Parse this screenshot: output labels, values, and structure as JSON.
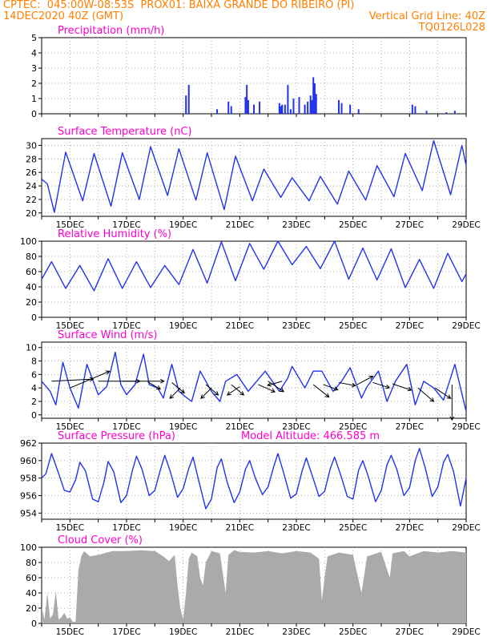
{
  "header": {
    "line1_left": "CPTEC:  045:00W-08:53S  PROX01: BAIXA GRANDE DO RIBEIRO (PI)",
    "line2_left": "14DEC2020 40Z (GMT)",
    "line2_right": "Vertical Grid Line: 40Z",
    "line3_right": "TQ0126L028",
    "color": "#ff8000"
  },
  "colors": {
    "title": "#ff00cc",
    "series": "#2233ee",
    "wind_arrow": "#000000",
    "cloud": "#aaaaaa",
    "grid": "#999999"
  },
  "x_axis": {
    "start_day": 14.0,
    "end_day": 29.0,
    "tick_labels": [
      "15DEC",
      "17DEC",
      "19DEC",
      "21DEC",
      "23DEC",
      "25DEC",
      "27DEC",
      "29DEC"
    ],
    "tick_days": [
      15,
      17,
      19,
      21,
      23,
      25,
      27,
      29
    ]
  },
  "chart_data": [
    {
      "type": "bar",
      "title": "Precipitation (mm/h)",
      "ylim": [
        0,
        5
      ],
      "yticks": [
        "0",
        "1",
        "2",
        "3",
        "4",
        "5"
      ],
      "points": [
        [
          19.1,
          1.2
        ],
        [
          19.2,
          1.9
        ],
        [
          20.2,
          0.3
        ],
        [
          20.6,
          0.8
        ],
        [
          20.7,
          0.5
        ],
        [
          21.2,
          1.1
        ],
        [
          21.25,
          1.9
        ],
        [
          21.3,
          0.9
        ],
        [
          21.5,
          0.6
        ],
        [
          21.7,
          0.8
        ],
        [
          22.4,
          0.7
        ],
        [
          22.45,
          0.5
        ],
        [
          22.5,
          0.6
        ],
        [
          22.6,
          0.6
        ],
        [
          22.7,
          1.9
        ],
        [
          22.8,
          0.3
        ],
        [
          22.9,
          1.0
        ],
        [
          23.1,
          1.1
        ],
        [
          23.3,
          0.6
        ],
        [
          23.4,
          0.8
        ],
        [
          23.5,
          1.2
        ],
        [
          23.55,
          0.9
        ],
        [
          23.6,
          2.4
        ],
        [
          23.65,
          2.0
        ],
        [
          23.7,
          1.3
        ],
        [
          24.5,
          0.9
        ],
        [
          24.6,
          0.7
        ],
        [
          24.9,
          0.6
        ],
        [
          25.2,
          0.3
        ],
        [
          27.1,
          0.6
        ],
        [
          27.2,
          0.5
        ],
        [
          27.6,
          0.2
        ],
        [
          28.3,
          0.1
        ],
        [
          28.6,
          0.2
        ]
      ]
    },
    {
      "type": "line",
      "title": "Surface Temperature (nC)",
      "ylim": [
        19.5,
        31
      ],
      "yticks": [
        "20",
        "22",
        "24",
        "26",
        "28",
        "30"
      ],
      "points": [
        [
          14.0,
          25.0
        ],
        [
          14.2,
          24.3
        ],
        [
          14.45,
          20.1
        ],
        [
          14.85,
          29.0
        ],
        [
          15.45,
          21.8
        ],
        [
          15.85,
          28.8
        ],
        [
          16.45,
          21.0
        ],
        [
          16.85,
          28.9
        ],
        [
          17.45,
          22.0
        ],
        [
          17.85,
          29.8
        ],
        [
          18.45,
          22.6
        ],
        [
          18.85,
          29.5
        ],
        [
          19.45,
          21.9
        ],
        [
          19.85,
          28.9
        ],
        [
          20.45,
          20.5
        ],
        [
          20.85,
          28.4
        ],
        [
          21.45,
          21.8
        ],
        [
          21.85,
          26.5
        ],
        [
          22.45,
          22.3
        ],
        [
          22.85,
          25.2
        ],
        [
          23.45,
          21.8
        ],
        [
          23.85,
          25.4
        ],
        [
          24.45,
          21.3
        ],
        [
          24.85,
          26.2
        ],
        [
          25.45,
          21.9
        ],
        [
          25.85,
          27.0
        ],
        [
          26.45,
          22.4
        ],
        [
          26.85,
          28.8
        ],
        [
          27.45,
          23.3
        ],
        [
          27.85,
          30.7
        ],
        [
          28.45,
          22.7
        ],
        [
          28.85,
          30.0
        ],
        [
          29.0,
          27.0
        ]
      ]
    },
    {
      "type": "line",
      "title": "Relative Humidity (%)",
      "ylim": [
        0,
        100
      ],
      "yticks": [
        "0",
        "20",
        "40",
        "60",
        "80",
        "100"
      ],
      "points": [
        [
          14.0,
          50.0
        ],
        [
          14.35,
          73.0
        ],
        [
          14.85,
          38.0
        ],
        [
          15.35,
          68.0
        ],
        [
          15.85,
          35.0
        ],
        [
          16.35,
          77.0
        ],
        [
          16.85,
          38.0
        ],
        [
          17.35,
          73.0
        ],
        [
          17.85,
          39.0
        ],
        [
          18.35,
          68.0
        ],
        [
          18.85,
          43.0
        ],
        [
          19.35,
          89.0
        ],
        [
          19.85,
          45.0
        ],
        [
          20.35,
          99.0
        ],
        [
          20.85,
          48.0
        ],
        [
          21.35,
          97.0
        ],
        [
          21.85,
          63.0
        ],
        [
          22.35,
          100.0
        ],
        [
          22.85,
          69.0
        ],
        [
          23.35,
          93.0
        ],
        [
          23.85,
          64.0
        ],
        [
          24.35,
          100.0
        ],
        [
          24.85,
          50.0
        ],
        [
          25.35,
          91.0
        ],
        [
          25.85,
          49.0
        ],
        [
          26.35,
          90.0
        ],
        [
          26.85,
          39.0
        ],
        [
          27.35,
          76.0
        ],
        [
          27.85,
          38.0
        ],
        [
          28.35,
          84.0
        ],
        [
          28.85,
          47.0
        ],
        [
          29.0,
          57.0
        ]
      ]
    },
    {
      "type": "line",
      "title": "Surface Wind (m/s)",
      "ylim": [
        -0.5,
        10.8
      ],
      "yticks": [
        "0",
        "2",
        "4",
        "6",
        "8",
        "10"
      ],
      "points": [
        [
          14.0,
          5.0
        ],
        [
          14.3,
          3.5
        ],
        [
          14.5,
          1.5
        ],
        [
          14.75,
          7.8
        ],
        [
          15.0,
          4.0
        ],
        [
          15.2,
          2.0
        ],
        [
          15.3,
          1.0
        ],
        [
          15.6,
          7.5
        ],
        [
          16.0,
          3.0
        ],
        [
          16.3,
          4.2
        ],
        [
          16.6,
          9.3
        ],
        [
          16.8,
          4.5
        ],
        [
          17.0,
          3.0
        ],
        [
          17.3,
          4.5
        ],
        [
          17.6,
          9.0
        ],
        [
          17.8,
          4.5
        ],
        [
          18.1,
          4.0
        ],
        [
          18.3,
          2.5
        ],
        [
          18.6,
          7.5
        ],
        [
          18.85,
          3.5
        ],
        [
          19.05,
          2.8
        ],
        [
          19.3,
          2.0
        ],
        [
          19.6,
          6.5
        ],
        [
          20.0,
          3.5
        ],
        [
          20.3,
          2.0
        ],
        [
          20.5,
          5.0
        ],
        [
          20.9,
          6.0
        ],
        [
          21.3,
          3.5
        ],
        [
          21.6,
          5.0
        ],
        [
          21.9,
          6.5
        ],
        [
          22.4,
          3.5
        ],
        [
          22.7,
          5.5
        ],
        [
          22.85,
          7.2
        ],
        [
          23.3,
          4.0
        ],
        [
          23.6,
          6.5
        ],
        [
          23.9,
          6.5
        ],
        [
          24.3,
          3.5
        ],
        [
          24.6,
          5.0
        ],
        [
          24.9,
          7.0
        ],
        [
          25.3,
          2.5
        ],
        [
          25.5,
          4.2
        ],
        [
          25.9,
          6.5
        ],
        [
          26.2,
          2.0
        ],
        [
          26.5,
          5.0
        ],
        [
          26.9,
          7.5
        ],
        [
          27.2,
          1.5
        ],
        [
          27.5,
          5.0
        ],
        [
          27.85,
          4.0
        ],
        [
          28.2,
          2.2
        ],
        [
          28.6,
          7.5
        ],
        [
          29.0,
          0.5
        ]
      ],
      "arrows": [
        [
          14.35,
          5.0,
          4.0,
          0.2
        ],
        [
          15.0,
          4.0,
          3.8,
          1.6
        ],
        [
          16.0,
          5.0,
          4.0,
          0.0
        ],
        [
          16.85,
          5.0,
          4.0,
          0.0
        ],
        [
          17.75,
          4.9,
          1.2,
          -0.7
        ],
        [
          18.6,
          4.8,
          1.2,
          -1.0
        ],
        [
          18.9,
          4.0,
          -1.0,
          -1.0
        ],
        [
          19.8,
          4.5,
          1.2,
          -1.0
        ],
        [
          20.0,
          4.0,
          -1.0,
          -1.0
        ],
        [
          20.7,
          4.5,
          1.2,
          -1.0
        ],
        [
          21.0,
          4.2,
          -1.2,
          -0.8
        ],
        [
          21.65,
          4.5,
          1.6,
          -0.7
        ],
        [
          22.0,
          5.0,
          1.5,
          -1.0
        ],
        [
          22.5,
          5.0,
          -1.4,
          -0.4
        ],
        [
          23.6,
          4.5,
          1.5,
          -1.2
        ],
        [
          23.95,
          4.5,
          1.4,
          -0.5
        ],
        [
          24.5,
          4.8,
          1.6,
          -0.3
        ],
        [
          25.15,
          4.5,
          1.5,
          0.8
        ],
        [
          25.7,
          4.8,
          1.6,
          -0.5
        ],
        [
          26.4,
          4.6,
          1.8,
          -0.6
        ],
        [
          27.3,
          4.0,
          1.5,
          -1.3
        ],
        [
          27.9,
          4.0,
          1.5,
          -1.0
        ],
        [
          28.5,
          4.5,
          0.0,
          -3.4
        ]
      ]
    },
    {
      "type": "line",
      "title": "Surface Pressure (hPa)",
      "annotation": "Model Altitude: 466.585 m",
      "ylim": [
        953.3,
        962
      ],
      "yticks": [
        "954",
        "956",
        "958",
        "960",
        "962"
      ],
      "points": [
        [
          14.0,
          958.0
        ],
        [
          14.15,
          958.5
        ],
        [
          14.35,
          960.8
        ],
        [
          14.55,
          959.0
        ],
        [
          14.8,
          956.6
        ],
        [
          15.0,
          956.4
        ],
        [
          15.2,
          957.8
        ],
        [
          15.35,
          959.8
        ],
        [
          15.55,
          958.8
        ],
        [
          15.8,
          955.6
        ],
        [
          16.0,
          955.3
        ],
        [
          16.2,
          957.5
        ],
        [
          16.35,
          959.9
        ],
        [
          16.55,
          958.7
        ],
        [
          16.8,
          955.2
        ],
        [
          17.0,
          956.0
        ],
        [
          17.2,
          958.8
        ],
        [
          17.35,
          960.5
        ],
        [
          17.55,
          959.0
        ],
        [
          17.8,
          956.0
        ],
        [
          18.0,
          956.6
        ],
        [
          18.2,
          959.0
        ],
        [
          18.35,
          960.6
        ],
        [
          18.55,
          958.7
        ],
        [
          18.8,
          955.8
        ],
        [
          19.0,
          956.8
        ],
        [
          19.2,
          959.1
        ],
        [
          19.35,
          960.4
        ],
        [
          19.55,
          957.7
        ],
        [
          19.8,
          954.5
        ],
        [
          20.0,
          955.6
        ],
        [
          20.2,
          959.2
        ],
        [
          20.35,
          960.2
        ],
        [
          20.55,
          957.6
        ],
        [
          20.8,
          955.2
        ],
        [
          21.0,
          956.4
        ],
        [
          21.2,
          959.0
        ],
        [
          21.35,
          960.0
        ],
        [
          21.55,
          958.0
        ],
        [
          21.8,
          956.1
        ],
        [
          22.0,
          957.0
        ],
        [
          22.2,
          959.3
        ],
        [
          22.35,
          960.8
        ],
        [
          22.55,
          958.6
        ],
        [
          22.8,
          955.7
        ],
        [
          23.0,
          956.2
        ],
        [
          23.2,
          958.8
        ],
        [
          23.35,
          960.3
        ],
        [
          23.55,
          958.4
        ],
        [
          23.8,
          955.9
        ],
        [
          24.0,
          956.5
        ],
        [
          24.2,
          959.1
        ],
        [
          24.35,
          960.4
        ],
        [
          24.55,
          958.5
        ],
        [
          24.8,
          955.9
        ],
        [
          25.0,
          955.6
        ],
        [
          25.2,
          958.9
        ],
        [
          25.35,
          960.0
        ],
        [
          25.55,
          958.1
        ],
        [
          25.8,
          955.3
        ],
        [
          26.0,
          956.6
        ],
        [
          26.2,
          959.5
        ],
        [
          26.35,
          960.6
        ],
        [
          26.55,
          959.0
        ],
        [
          26.8,
          956.0
        ],
        [
          27.0,
          956.9
        ],
        [
          27.2,
          960.0
        ],
        [
          27.35,
          961.4
        ],
        [
          27.55,
          959.2
        ],
        [
          27.8,
          955.9
        ],
        [
          28.0,
          957.0
        ],
        [
          28.2,
          959.8
        ],
        [
          28.35,
          960.7
        ],
        [
          28.55,
          958.8
        ],
        [
          28.8,
          954.8
        ],
        [
          29.0,
          958.0
        ]
      ]
    },
    {
      "type": "area",
      "title": "Cloud Cover (%)",
      "ylim": [
        0,
        100
      ],
      "yticks": [
        "0",
        "20",
        "40",
        "60",
        "80",
        "100"
      ],
      "points": [
        [
          14.0,
          22.0
        ],
        [
          14.1,
          5.0
        ],
        [
          14.2,
          40.0
        ],
        [
          14.3,
          6.0
        ],
        [
          14.4,
          12.0
        ],
        [
          14.5,
          42.0
        ],
        [
          14.6,
          5.0
        ],
        [
          14.7,
          8.0
        ],
        [
          14.8,
          14.0
        ],
        [
          14.9,
          6.0
        ],
        [
          15.0,
          8.0
        ],
        [
          15.1,
          2.0
        ],
        [
          15.2,
          2.0
        ],
        [
          15.3,
          70.0
        ],
        [
          15.4,
          88.0
        ],
        [
          15.5,
          95.0
        ],
        [
          15.7,
          88.0
        ],
        [
          16.0,
          90.0
        ],
        [
          16.5,
          95.0
        ],
        [
          17.0,
          95.0
        ],
        [
          17.5,
          96.0
        ],
        [
          18.0,
          95.0
        ],
        [
          18.3,
          88.0
        ],
        [
          18.5,
          82.0
        ],
        [
          18.7,
          90.0
        ],
        [
          18.8,
          50.0
        ],
        [
          18.9,
          20.0
        ],
        [
          19.0,
          5.0
        ],
        [
          19.1,
          40.0
        ],
        [
          19.2,
          85.0
        ],
        [
          19.3,
          93.0
        ],
        [
          19.5,
          88.0
        ],
        [
          19.6,
          60.0
        ],
        [
          19.7,
          50.0
        ],
        [
          19.8,
          80.0
        ],
        [
          20.0,
          95.0
        ],
        [
          20.3,
          92.0
        ],
        [
          20.5,
          40.0
        ],
        [
          20.6,
          90.0
        ],
        [
          20.8,
          96.0
        ],
        [
          21.0,
          94.0
        ],
        [
          21.5,
          93.0
        ],
        [
          22.0,
          95.0
        ],
        [
          22.5,
          92.0
        ],
        [
          23.0,
          95.0
        ],
        [
          23.5,
          93.0
        ],
        [
          23.8,
          85.0
        ],
        [
          23.9,
          30.0
        ],
        [
          24.0,
          60.0
        ],
        [
          24.1,
          88.0
        ],
        [
          24.5,
          93.0
        ],
        [
          25.0,
          90.0
        ],
        [
          25.3,
          40.0
        ],
        [
          25.5,
          88.0
        ],
        [
          26.0,
          94.0
        ],
        [
          26.3,
          60.0
        ],
        [
          26.4,
          92.0
        ],
        [
          26.8,
          95.0
        ],
        [
          27.0,
          88.0
        ],
        [
          27.5,
          95.0
        ],
        [
          28.0,
          93.0
        ],
        [
          28.5,
          95.0
        ],
        [
          29.0,
          93.0
        ]
      ]
    }
  ]
}
